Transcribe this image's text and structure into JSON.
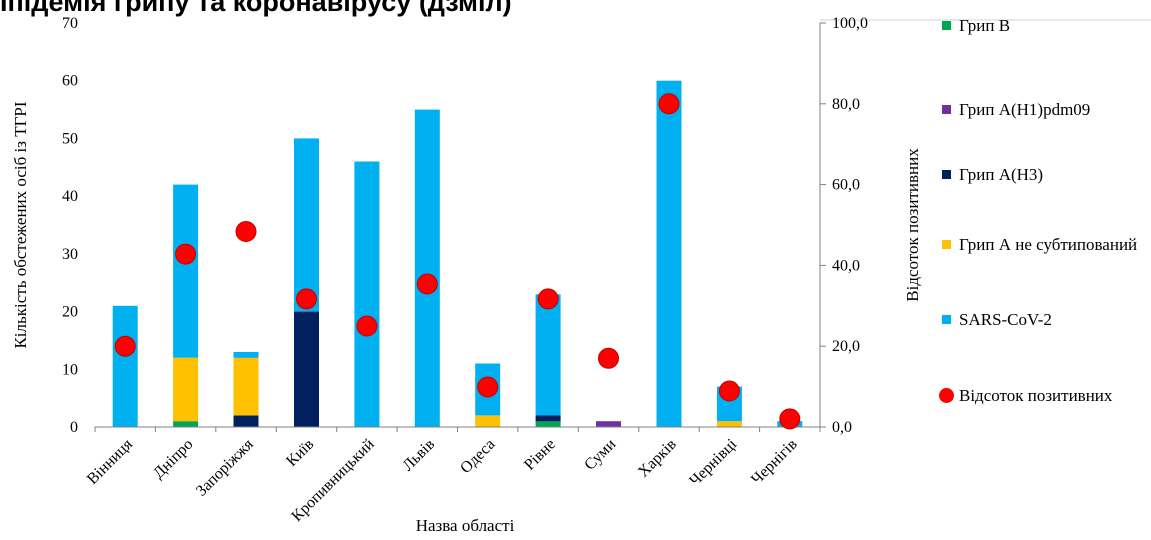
{
  "page": {
    "title": "Іпідемія грипу та коронавірусу (дзміл)"
  },
  "chart_data": {
    "type": "bar",
    "stacked": true,
    "title": "Іпідемія грипу та коронавірусу (дзміл)",
    "xlabel": "Назва області",
    "ylabel": "Кількість обстежених осіб із ТГРІ",
    "y2label": "Відсоток позитивних",
    "ylim": [
      0,
      70
    ],
    "y2lim": [
      0,
      100
    ],
    "yticks": [
      "0",
      "10",
      "20",
      "30",
      "40",
      "50",
      "60",
      "70"
    ],
    "y2ticks": [
      "0,0",
      "20,0",
      "40,0",
      "60,0",
      "80,0",
      "100,0"
    ],
    "grid": false,
    "legend_position": "right",
    "categories": [
      "Вінниця",
      "Дніпро",
      "Запоріжжя",
      "Київ",
      "Кропивницький",
      "Львів",
      "Одеса",
      "Рівне",
      "Суми",
      "Харків",
      "Чернівці",
      "Чернігів"
    ],
    "series": [
      {
        "name": "Грип В",
        "color": "#00a651",
        "values": [
          0,
          1,
          0,
          0,
          0,
          0,
          0,
          1,
          0,
          0,
          0,
          0
        ]
      },
      {
        "name": "Грип A(H1)pdm09",
        "color": "#7030a0",
        "values": [
          0,
          0,
          0,
          0,
          0,
          0,
          0,
          0,
          1,
          0,
          0,
          0
        ]
      },
      {
        "name": "Грип A(H3)",
        "color": "#002060",
        "values": [
          0,
          0,
          2,
          20,
          0,
          0,
          0,
          1,
          0,
          0,
          0,
          0
        ]
      },
      {
        "name": "Грип А не субтипований",
        "color": "#ffc000",
        "values": [
          0,
          11,
          10,
          0,
          0,
          0,
          2,
          0,
          0,
          0,
          1,
          0
        ]
      },
      {
        "name": "SARS-CoV-2",
        "color": "#00b0f0",
        "values": [
          21,
          30,
          1,
          30,
          46,
          55,
          9,
          21,
          0,
          60,
          6,
          1
        ]
      }
    ],
    "line_series": {
      "name": "Відсоток позитивних",
      "color": "#ff0000",
      "axis": "right",
      "values": [
        20,
        42.8,
        48.4,
        31.7,
        25,
        35.4,
        9.9,
        31.7,
        17,
        80,
        8.9,
        2
      ]
    }
  }
}
